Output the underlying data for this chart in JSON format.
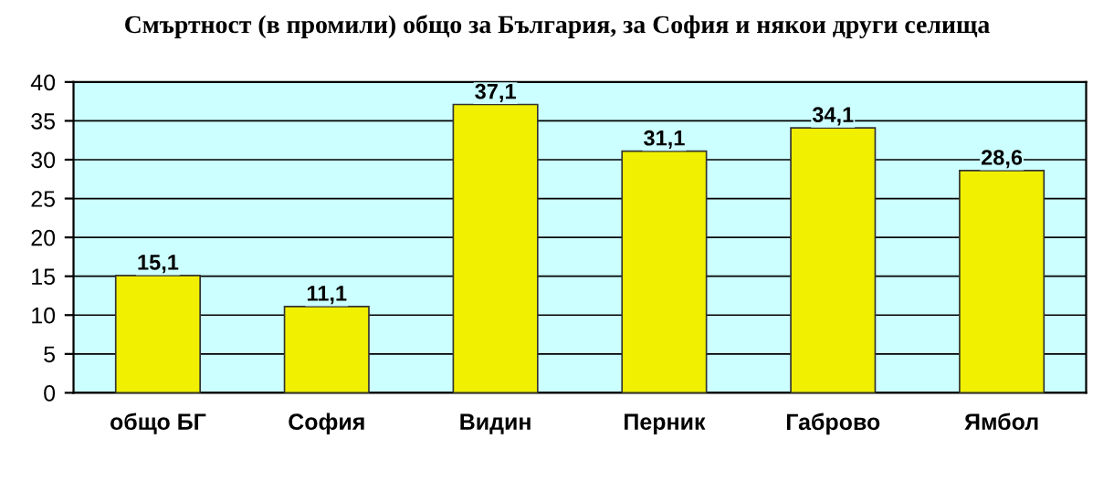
{
  "chart_data": {
    "type": "bar",
    "title": "Смъртност (в промили) общо за България, за София и някои други селища",
    "categories": [
      "общо БГ",
      "София",
      "Видин",
      "Перник",
      "Габрово",
      "Ямбол"
    ],
    "values": [
      15.1,
      11.1,
      37.1,
      31.1,
      34.1,
      28.6
    ],
    "value_labels": [
      "15,1",
      "11,1",
      "37,1",
      "31,1",
      "34,1",
      "28,6"
    ],
    "color": "#f0f000",
    "ylim": [
      0,
      40
    ],
    "yticks": [
      0,
      5,
      10,
      15,
      20,
      25,
      30,
      35,
      40
    ],
    "grid": "y",
    "legend": false
  }
}
